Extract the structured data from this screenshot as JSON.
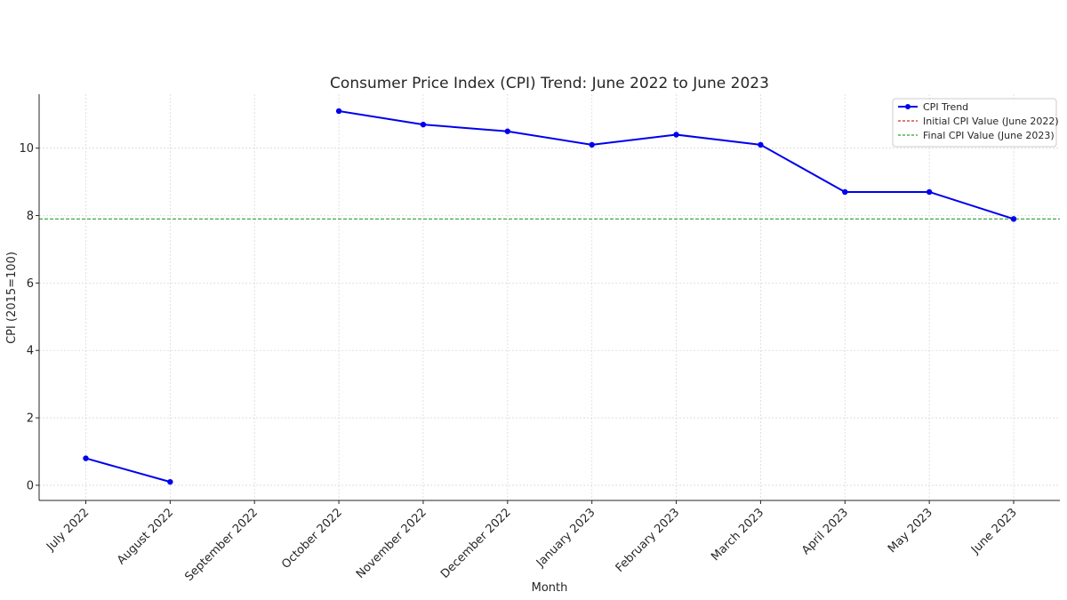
{
  "chart_data": {
    "type": "line",
    "title": "Consumer Price Index (CPI) Trend: June 2022 to June 2023",
    "xlabel": "Month",
    "ylabel": "CPI (2015=100)",
    "categories": [
      "July 2022",
      "August 2022",
      "September 2022",
      "October 2022",
      "November 2022",
      "December 2022",
      "January 2023",
      "February 2023",
      "March 2023",
      "April 2023",
      "May 2023",
      "June 2023"
    ],
    "series": [
      {
        "name": "CPI Trend",
        "color": "#0000ee",
        "values": [
          0.8,
          0.1,
          null,
          11.1,
          10.7,
          10.5,
          10.1,
          10.4,
          10.1,
          8.7,
          8.7,
          7.9
        ]
      }
    ],
    "reference_lines": [
      {
        "name": "Initial CPI Value (June 2022)",
        "color": "#d62728",
        "style": "dashed",
        "value": null
      },
      {
        "name": "Final CPI Value (June 2023)",
        "color": "#2ca02c",
        "style": "dashed",
        "value": 7.9
      }
    ],
    "ylim": [
      -0.45,
      11.6
    ],
    "yticks": [
      0,
      2,
      4,
      6,
      8,
      10
    ],
    "grid": true,
    "legend_position": "top-right"
  }
}
